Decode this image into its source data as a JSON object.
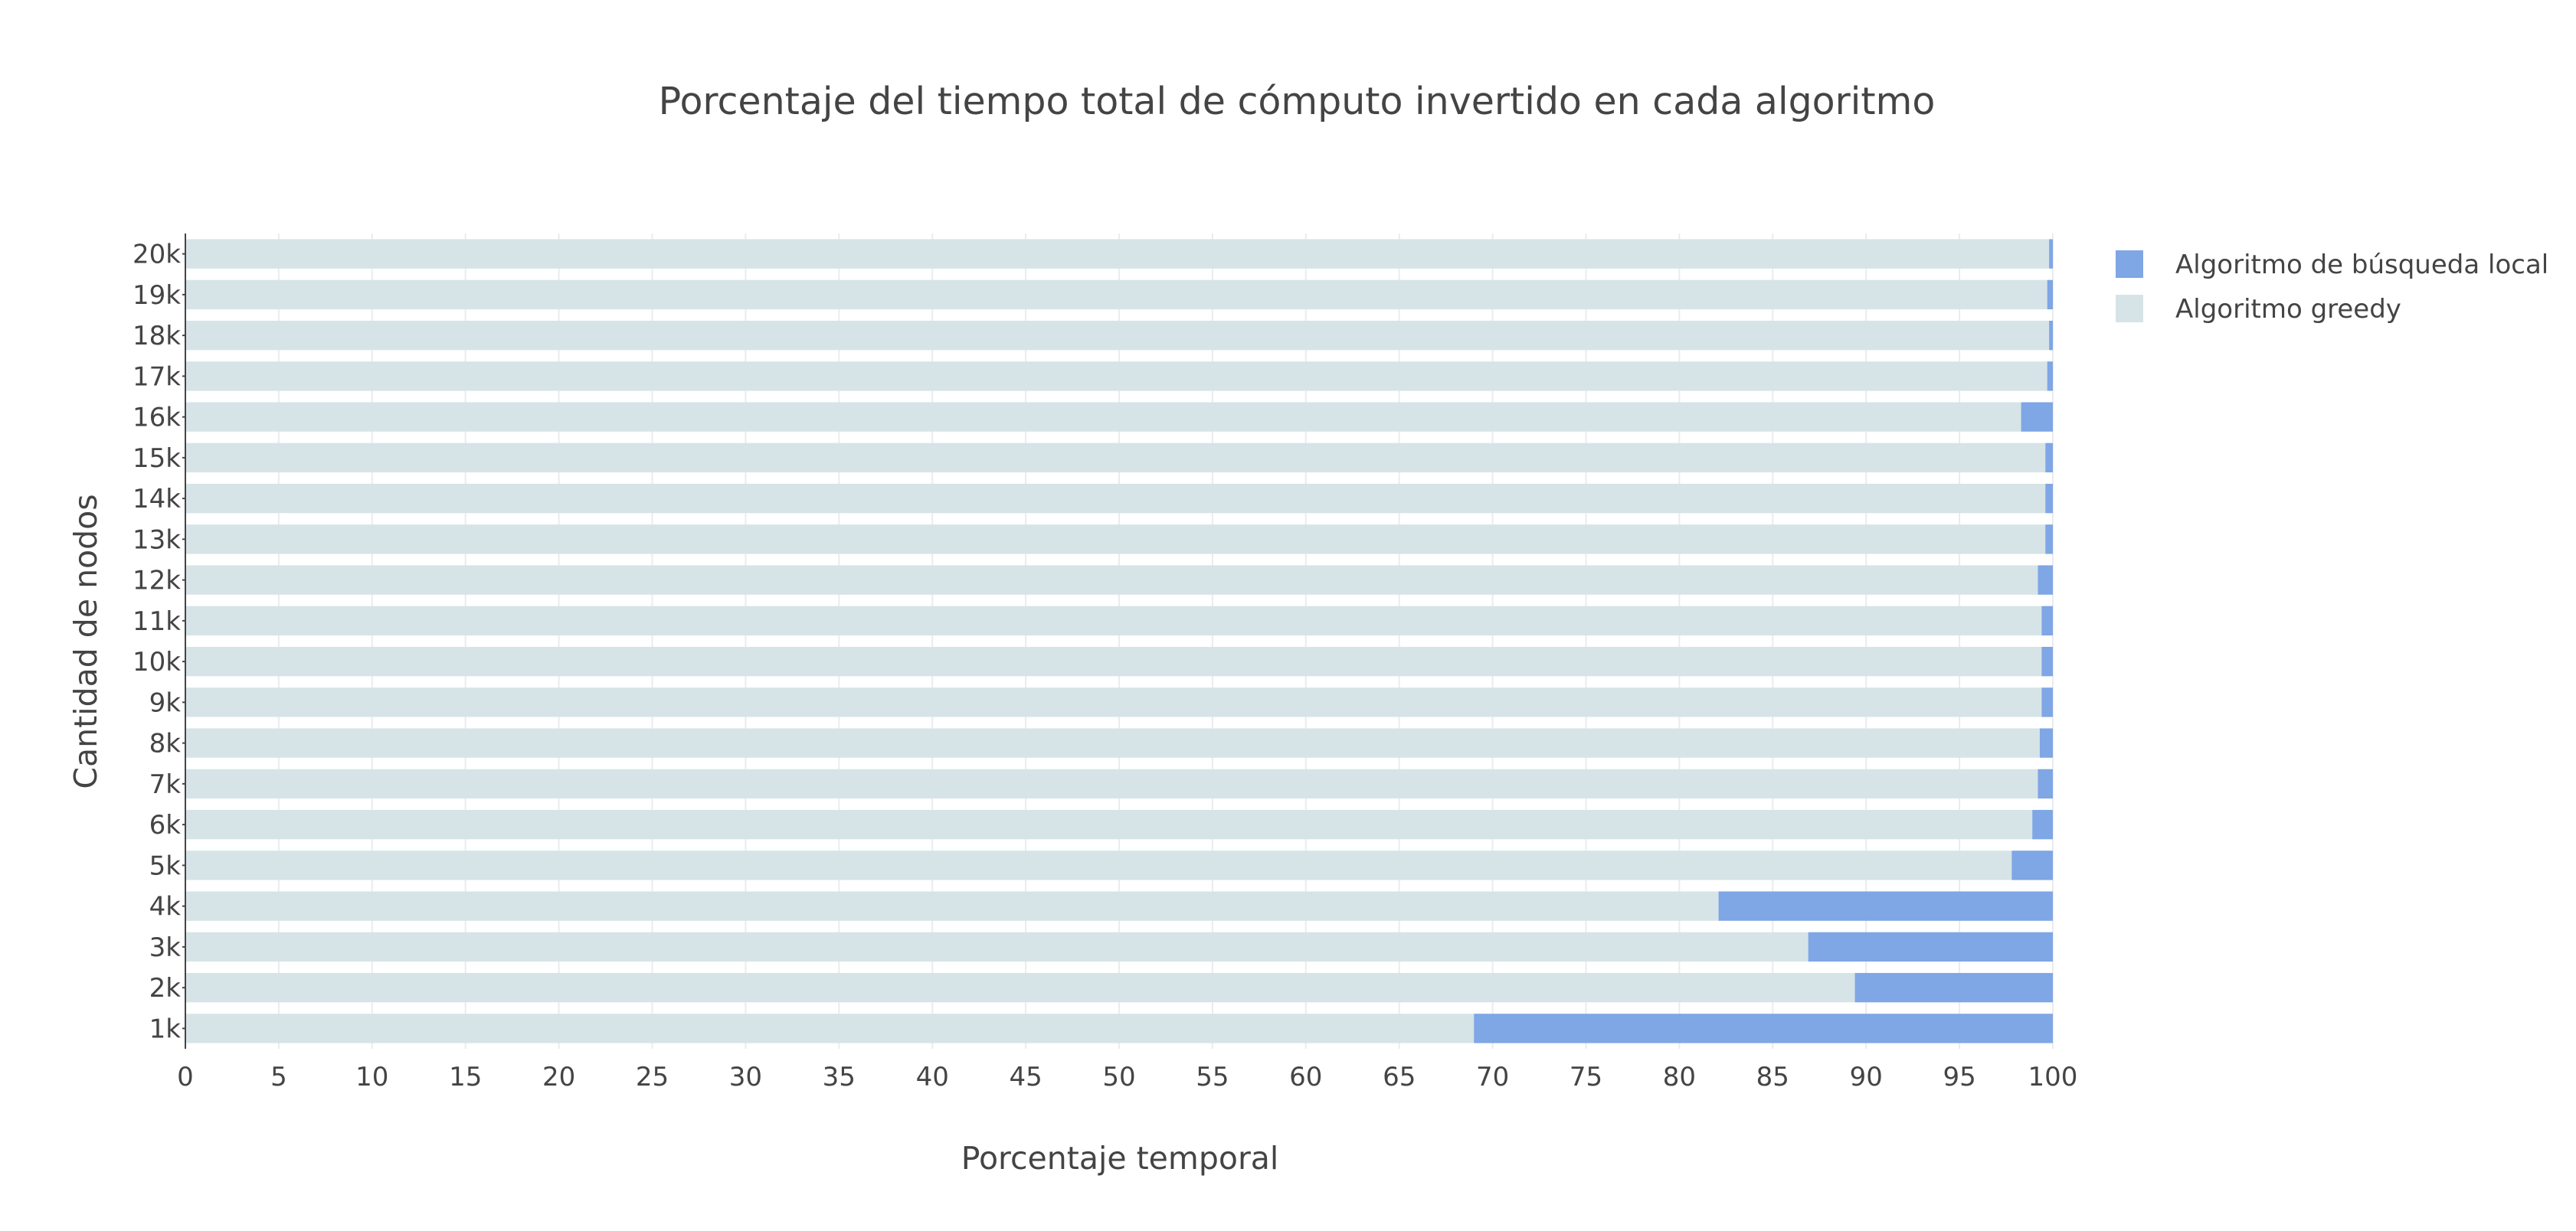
{
  "chart_data": {
    "type": "bar",
    "orientation": "horizontal",
    "stacked": true,
    "title": "Porcentaje del tiempo total de cómputo invertido en cada algoritmo",
    "xlabel": "Porcentaje temporal",
    "ylabel": "Cantidad de nodos",
    "xlim": [
      0,
      100
    ],
    "x_ticks": [
      0,
      5,
      10,
      15,
      20,
      25,
      30,
      35,
      40,
      45,
      50,
      55,
      60,
      65,
      70,
      75,
      80,
      85,
      90,
      95,
      100
    ],
    "grid": true,
    "legend_position": "top-right",
    "categories": [
      "1k",
      "2k",
      "3k",
      "4k",
      "5k",
      "6k",
      "7k",
      "8k",
      "9k",
      "10k",
      "11k",
      "12k",
      "13k",
      "14k",
      "15k",
      "16k",
      "17k",
      "18k",
      "19k",
      "20k"
    ],
    "series": [
      {
        "name": "Algoritmo greedy",
        "color": "#D6E4E7",
        "values": [
          69.0,
          89.4,
          86.9,
          82.1,
          97.8,
          98.9,
          99.2,
          99.3,
          99.4,
          99.4,
          99.4,
          99.2,
          99.6,
          99.6,
          99.6,
          98.3,
          99.7,
          99.8,
          99.7,
          99.8
        ]
      },
      {
        "name": "Algoritmo de búsqueda local",
        "color": "#7FA6E5",
        "values": [
          31.0,
          10.6,
          13.1,
          17.9,
          2.2,
          1.1,
          0.8,
          0.7,
          0.6,
          0.6,
          0.6,
          0.8,
          0.4,
          0.4,
          0.4,
          1.7,
          0.3,
          0.2,
          0.3,
          0.2
        ]
      }
    ]
  }
}
